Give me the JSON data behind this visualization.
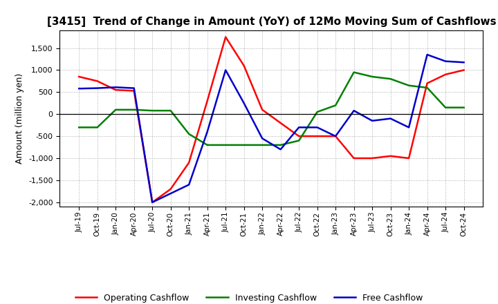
{
  "title": "[3415]  Trend of Change in Amount (YoY) of 12Mo Moving Sum of Cashflows",
  "ylabel": "Amount (million yen)",
  "ylim": [
    -2100,
    1900
  ],
  "yticks": [
    -2000,
    -1500,
    -1000,
    -500,
    0,
    500,
    1000,
    1500
  ],
  "x_labels": [
    "Jul-19",
    "Oct-19",
    "Jan-20",
    "Apr-20",
    "Jul-20",
    "Oct-20",
    "Jan-21",
    "Apr-21",
    "Jul-21",
    "Oct-21",
    "Jan-22",
    "Apr-22",
    "Jul-22",
    "Oct-22",
    "Jan-23",
    "Apr-23",
    "Jul-23",
    "Oct-23",
    "Jan-24",
    "Apr-24",
    "Jul-24",
    "Oct-24"
  ],
  "operating": [
    850,
    750,
    550,
    530,
    -2000,
    -1700,
    -1100,
    300,
    1750,
    1100,
    100,
    -200,
    -500,
    -500,
    -500,
    -1000,
    -1000,
    -950,
    -1000,
    700,
    900,
    1000
  ],
  "investing": [
    -300,
    -300,
    100,
    100,
    80,
    80,
    -450,
    -700,
    -700,
    -700,
    -700,
    -700,
    -600,
    50,
    200,
    950,
    850,
    800,
    650,
    600,
    150,
    150
  ],
  "free": [
    580,
    590,
    610,
    590,
    -2000,
    -1800,
    -1600,
    -400,
    1000,
    250,
    -550,
    -800,
    -300,
    -300,
    -500,
    80,
    -150,
    -100,
    -300,
    1350,
    1200,
    1175
  ],
  "colors": {
    "operating": "#ff0000",
    "investing": "#008000",
    "free": "#0000cc"
  },
  "legend_labels": [
    "Operating Cashflow",
    "Investing Cashflow",
    "Free Cashflow"
  ],
  "background": "#ffffff",
  "grid_color": "#aaaaaa"
}
